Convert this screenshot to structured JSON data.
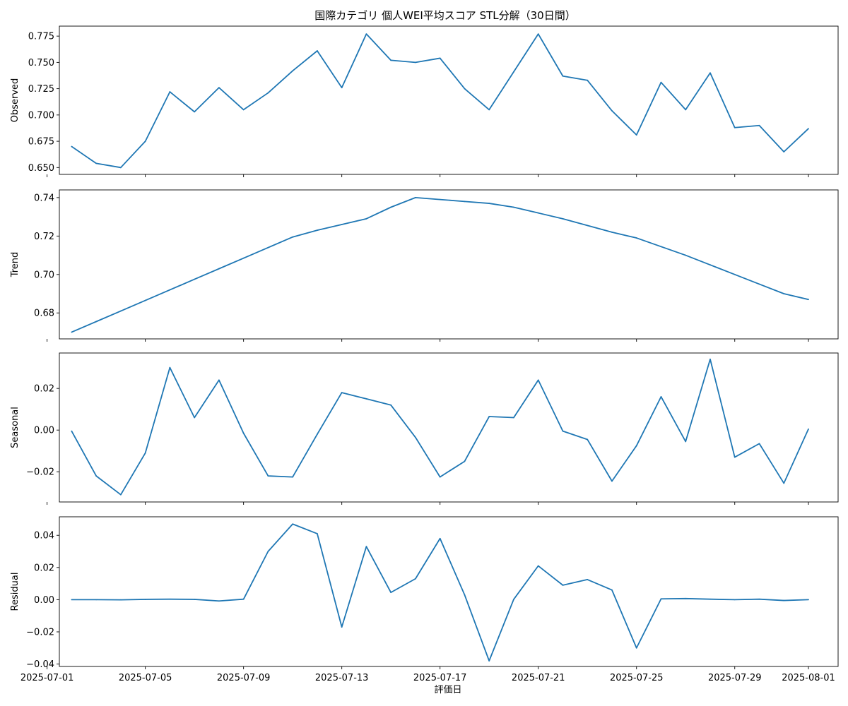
{
  "title": "国際カテゴリ 個人WEI平均スコア STL分解（30日間）",
  "xlabel": "評価日",
  "x_ticks": [
    "2025-07-01",
    "2025-07-05",
    "2025-07-09",
    "2025-07-13",
    "2025-07-17",
    "2025-07-21",
    "2025-07-25",
    "2025-07-29",
    "2025-08-01"
  ],
  "chart_data": {
    "type": "line",
    "line_color": "#1f77b4",
    "grid": false,
    "x": [
      "2025-07-02",
      "2025-07-03",
      "2025-07-04",
      "2025-07-05",
      "2025-07-06",
      "2025-07-07",
      "2025-07-08",
      "2025-07-09",
      "2025-07-10",
      "2025-07-11",
      "2025-07-12",
      "2025-07-13",
      "2025-07-14",
      "2025-07-15",
      "2025-07-16",
      "2025-07-17",
      "2025-07-18",
      "2025-07-19",
      "2025-07-20",
      "2025-07-21",
      "2025-07-22",
      "2025-07-23",
      "2025-07-24",
      "2025-07-25",
      "2025-07-26",
      "2025-07-27",
      "2025-07-28",
      "2025-07-29",
      "2025-07-30",
      "2025-07-31",
      "2025-08-01"
    ],
    "xlim": [
      "2025-07-01T12:00",
      "2025-08-02T05:00"
    ],
    "panels": [
      {
        "name": "observed",
        "ylabel": "Observed",
        "ylim": [
          0.6435,
          0.7845
        ],
        "yticks": [
          0.65,
          0.675,
          0.7,
          0.725,
          0.75,
          0.775
        ],
        "ytick_labels": [
          "0.650",
          "0.675",
          "0.700",
          "0.725",
          "0.750",
          "0.775"
        ],
        "values": [
          0.67,
          0.654,
          0.65,
          0.675,
          0.722,
          0.703,
          0.726,
          0.705,
          0.721,
          0.742,
          0.761,
          0.726,
          0.777,
          0.752,
          0.75,
          0.754,
          0.725,
          0.705,
          0.741,
          0.777,
          0.737,
          0.733,
          0.704,
          0.681,
          0.731,
          0.705,
          0.74,
          0.688,
          0.69,
          0.665,
          0.687
        ]
      },
      {
        "name": "trend",
        "ylabel": "Trend",
        "ylim": [
          0.6665,
          0.744
        ],
        "yticks": [
          0.68,
          0.7,
          0.72,
          0.74
        ],
        "ytick_labels": [
          "0.68",
          "0.70",
          "0.72",
          "0.74"
        ],
        "values": [
          0.67,
          0.6755,
          0.681,
          0.6865,
          0.692,
          0.6975,
          0.703,
          0.7085,
          0.714,
          0.7195,
          0.723,
          0.726,
          0.729,
          0.735,
          0.74,
          0.739,
          0.738,
          0.737,
          0.735,
          0.732,
          0.729,
          0.7255,
          0.722,
          0.719,
          0.7145,
          0.71,
          0.705,
          0.7,
          0.695,
          0.69,
          0.687
        ]
      },
      {
        "name": "seasonal",
        "ylabel": "Seasonal",
        "ylim": [
          -0.0345,
          0.037
        ],
        "yticks": [
          -0.02,
          0.0,
          0.02
        ],
        "ytick_labels": [
          "−0.02",
          "0.00",
          "0.02"
        ],
        "values": [
          -0.0005,
          -0.022,
          -0.031,
          -0.011,
          0.03,
          0.006,
          0.024,
          -0.0015,
          -0.022,
          -0.0225,
          -0.002,
          0.018,
          0.015,
          0.012,
          -0.0035,
          -0.0225,
          -0.015,
          0.0065,
          0.006,
          0.024,
          -0.0005,
          -0.0045,
          -0.0245,
          -0.0075,
          0.016,
          -0.0055,
          0.034,
          -0.013,
          -0.0065,
          -0.0255,
          0.0005
        ]
      },
      {
        "name": "residual",
        "ylabel": "Residual",
        "ylim": [
          -0.0415,
          0.0515
        ],
        "yticks": [
          -0.04,
          -0.02,
          0.0,
          0.02,
          0.04
        ],
        "ytick_labels": [
          "−0.04",
          "−0.02",
          "0.00",
          "0.02",
          "0.04"
        ],
        "values": [
          0.0,
          0.0,
          -0.0001,
          0.0002,
          0.0003,
          0.0002,
          -0.0008,
          0.0003,
          0.03,
          0.047,
          0.041,
          -0.017,
          0.033,
          0.0045,
          0.013,
          0.038,
          0.003,
          -0.038,
          0.0002,
          0.021,
          0.009,
          0.0125,
          0.006,
          -0.03,
          0.0005,
          0.0007,
          0.0003,
          0.0,
          0.0003,
          -0.0005,
          0.0
        ]
      }
    ]
  }
}
